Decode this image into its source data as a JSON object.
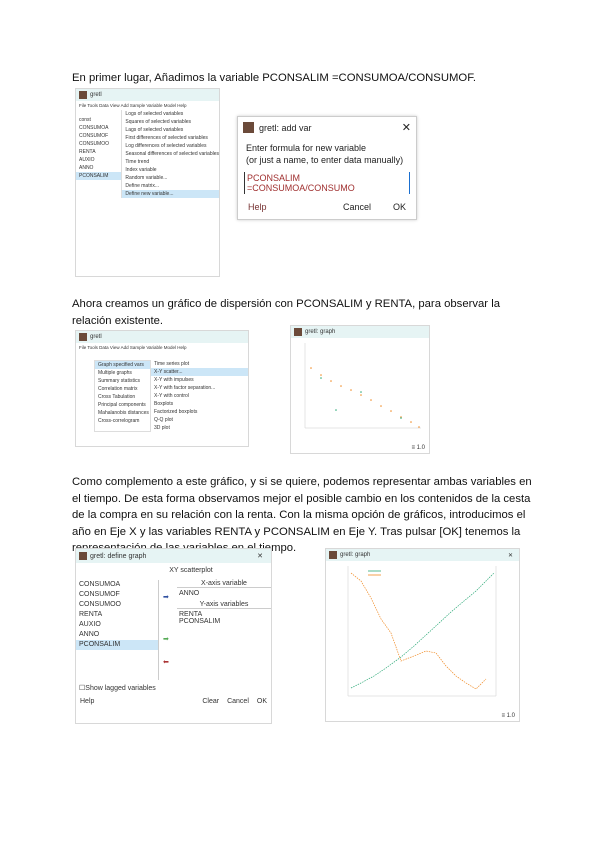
{
  "paragraphs": [
    "En primer lugar, Añadimos la variable PCONSALIM =CONSUMOA/CONSUMOF.",
    "Ahora creamos un gráfico de dispersión con PCONSALIM y RENTA, para observar la relación existente.",
    "Como complemento a este gráfico, y si se quiere, podemos representar ambas variables en el tiempo. De esta forma observamos mejor el posible cambio en los contenidos de la cesta de la compra en su relación con la renta. Con la misma opción de gráficos, introducimos el año en Eje X y las variables RENTA y PCONSALIM en Eje Y. Tras pulsar [OK] tenemos la representación de las variables en el tiempo."
  ],
  "shot1": {
    "title": "gretl",
    "menubar": "File Tools Data View Add Sample Variable Model Help",
    "vars": [
      "0",
      "1",
      "2",
      "3",
      "4",
      "5",
      "6",
      "7"
    ],
    "names": [
      "const",
      "CONSUMOA",
      "CONSUMOF",
      "CONSUMOO",
      "RENTA",
      "AUXIO",
      "ANNO",
      "PCONSALIM"
    ],
    "menu": [
      "Logs of selected variables",
      "Squares of selected variables",
      "Lags of selected variables",
      "First differences of selected variables",
      "Log differences of selected variables",
      "Seasonal differences of selected variables",
      "Time trend",
      "Index variable",
      "Random variable...",
      "Define matrix...",
      "Define new variable..."
    ],
    "dialog": {
      "title": "gretl: add var",
      "prompt1": "Enter formula for new variable",
      "prompt2": "(or just a name, to enter data manually)",
      "input": "PCONSALIM =CONSUMOA/CONSUMO",
      "help": "Help",
      "cancel": "Cancel",
      "ok": "OK",
      "close": "✕"
    }
  },
  "shot2": {
    "title": "gretl",
    "menubar": "File Tools Data View Add Sample Variable Model Help",
    "menu": [
      "Graph specified vars",
      "Multiple graphs",
      "Summary statistics",
      "Correlation matrix",
      "Cross Tabulation",
      "Principal components",
      "Mahalanobis distances",
      "Cross-correlogram"
    ],
    "submenu": [
      "Time series plot",
      "X-Y scatter...",
      "X-Y with impulses",
      "X-Y with factor separation...",
      "X-Y with control",
      "Boxplots",
      "Factorized boxplots",
      "Q-Q plot",
      "3D plot"
    ],
    "plot_title": "gretl: graph",
    "zoom": "1.0"
  },
  "shot3": {
    "title": "gretl: define graph",
    "heading": "XY scatterplot",
    "vars": [
      "CONSUMOA",
      "CONSUMOF",
      "CONSUMOO",
      "RENTA",
      "AUXIO",
      "ANNO",
      "PCONSALIM"
    ],
    "xlabel": "X-axis variable",
    "xvar": "ANNO",
    "ylabel": "Y-axis variables",
    "yvars": [
      "RENTA",
      "PCONSALIM"
    ],
    "lagged": "Show lagged variables",
    "help": "Help",
    "clear": "Clear",
    "cancel": "Cancel",
    "ok": "OK",
    "plot_title": "gretl: graph",
    "zoom": "1.0",
    "colors": {
      "renta": "#2aa876",
      "pconsalim": "#f08a24"
    }
  }
}
